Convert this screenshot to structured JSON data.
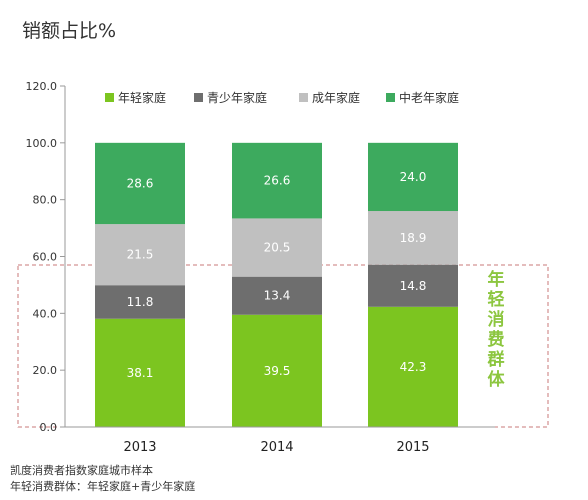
{
  "chart_data": {
    "type": "bar",
    "stacked": true,
    "title": "销额占比%",
    "categories": [
      "2013",
      "2014",
      "2015"
    ],
    "series": [
      {
        "name": "年轻家庭",
        "color": "#7cc520",
        "values": [
          38.1,
          39.5,
          42.3
        ]
      },
      {
        "name": "青少年家庭",
        "color": "#6e6e6e",
        "values": [
          11.8,
          13.4,
          14.8
        ]
      },
      {
        "name": "成年家庭",
        "color": "#c0c0c0",
        "values": [
          21.5,
          20.5,
          18.9
        ]
      },
      {
        "name": "中老年家庭",
        "color": "#3daa5e",
        "values": [
          28.6,
          26.6,
          24.0
        ]
      }
    ],
    "yticks": [
      "0.0",
      "20.0",
      "40.0",
      "60.0",
      "80.0",
      "100.0",
      "120.0"
    ],
    "ylim": [
      0,
      120
    ],
    "grid": false,
    "legend_position": "top",
    "annotation": {
      "text": "年轻消费群体",
      "color": "#8cc63f",
      "range": [
        0,
        57
      ]
    }
  },
  "footnotes": [
    "凯度消费者指数家庭城市样本",
    "年轻消费群体：年轻家庭+青少年家庭"
  ]
}
